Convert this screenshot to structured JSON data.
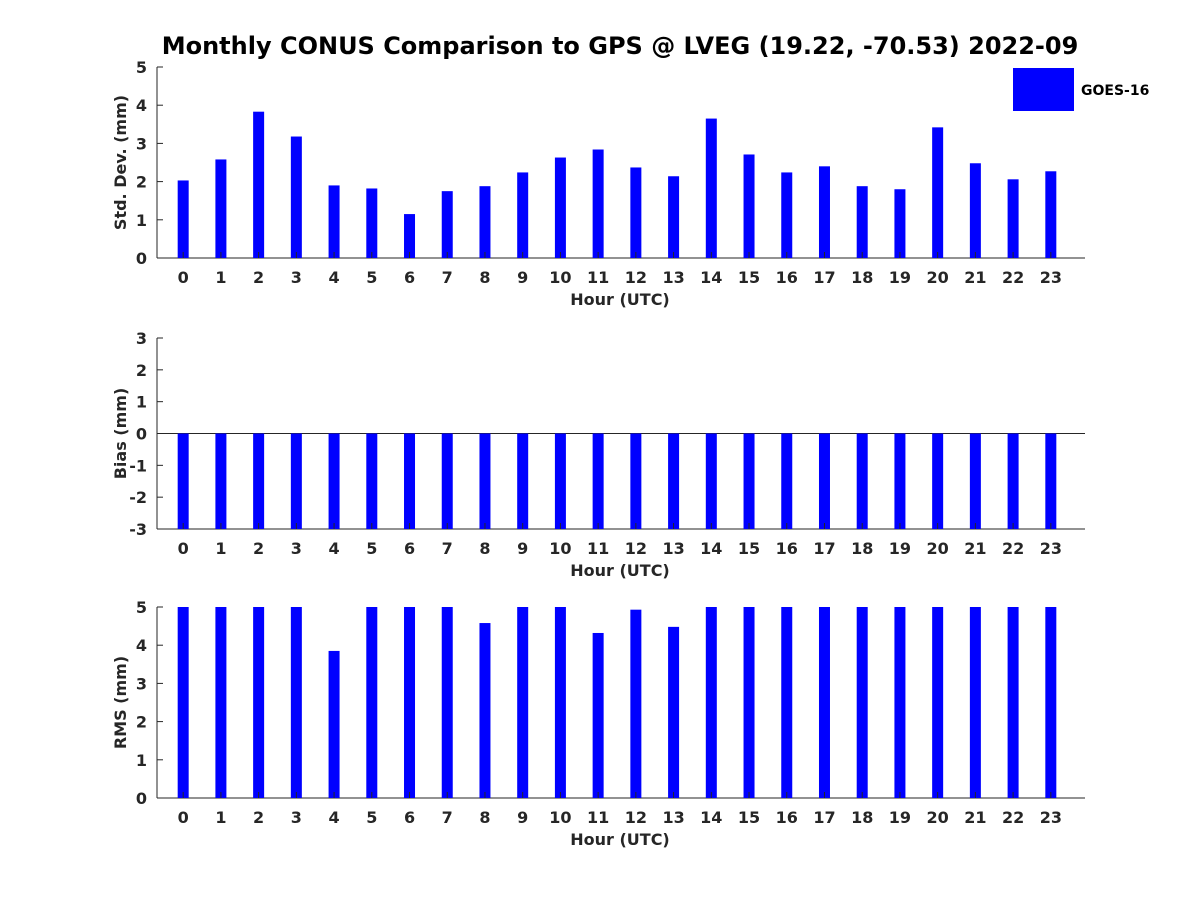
{
  "chart_data": {
    "title": "Monthly CONUS Comparison to GPS @ LVEG (19.22, -70.53) 2022-09",
    "legend": {
      "label": "GOES-16",
      "position": "top-right"
    },
    "bar_color": "#0000ff",
    "panels": [
      {
        "type": "bar",
        "xlabel": "Hour (UTC)",
        "ylabel": "Std. Dev. (mm)",
        "ylim": [
          0,
          5
        ],
        "yticks": [
          "0",
          "1",
          "2",
          "3",
          "4",
          "5"
        ],
        "categories": [
          "0",
          "1",
          "2",
          "3",
          "4",
          "5",
          "6",
          "7",
          "8",
          "9",
          "10",
          "11",
          "12",
          "13",
          "14",
          "15",
          "16",
          "17",
          "18",
          "19",
          "20",
          "21",
          "22",
          "23"
        ],
        "series": [
          {
            "name": "GOES-16",
            "values": [
              2.03,
              2.58,
              3.83,
              3.18,
              1.9,
              1.82,
              1.15,
              1.75,
              1.88,
              2.24,
              2.63,
              2.84,
              2.37,
              2.14,
              3.65,
              2.71,
              2.24,
              2.4,
              1.88,
              1.8,
              3.42,
              2.48,
              2.06,
              2.27
            ]
          }
        ]
      },
      {
        "type": "bar",
        "xlabel": "Hour (UTC)",
        "ylabel": "Bias (mm)",
        "ylim": [
          -3,
          3
        ],
        "yticks": [
          "-3",
          "-2",
          "-1",
          "0",
          "1",
          "2",
          "3"
        ],
        "categories": [
          "0",
          "1",
          "2",
          "3",
          "4",
          "5",
          "6",
          "7",
          "8",
          "9",
          "10",
          "11",
          "12",
          "13",
          "14",
          "15",
          "16",
          "17",
          "18",
          "19",
          "20",
          "21",
          "22",
          "23"
        ],
        "series": [
          {
            "name": "GOES-16",
            "values": [
              -3,
              -3,
              -3,
              -3,
              -3,
              -3,
              -3,
              -3,
              -3,
              -3,
              -3,
              -3,
              -3,
              -3,
              -3,
              -3,
              -3,
              -3,
              -3,
              -3,
              -3,
              -3,
              -3,
              -3
            ]
          }
        ]
      },
      {
        "type": "bar",
        "xlabel": "Hour (UTC)",
        "ylabel": "RMS (mm)",
        "ylim": [
          0,
          5
        ],
        "yticks": [
          "0",
          "1",
          "2",
          "3",
          "4",
          "5"
        ],
        "categories": [
          "0",
          "1",
          "2",
          "3",
          "4",
          "5",
          "6",
          "7",
          "8",
          "9",
          "10",
          "11",
          "12",
          "13",
          "14",
          "15",
          "16",
          "17",
          "18",
          "19",
          "20",
          "21",
          "22",
          "23"
        ],
        "series": [
          {
            "name": "GOES-16",
            "values": [
              5,
              5,
              5,
              5,
              3.85,
              5,
              5,
              5,
              4.58,
              5,
              5,
              4.32,
              4.93,
              4.48,
              5,
              5,
              5,
              5,
              5,
              5,
              5,
              5,
              5,
              5
            ]
          }
        ]
      }
    ]
  }
}
